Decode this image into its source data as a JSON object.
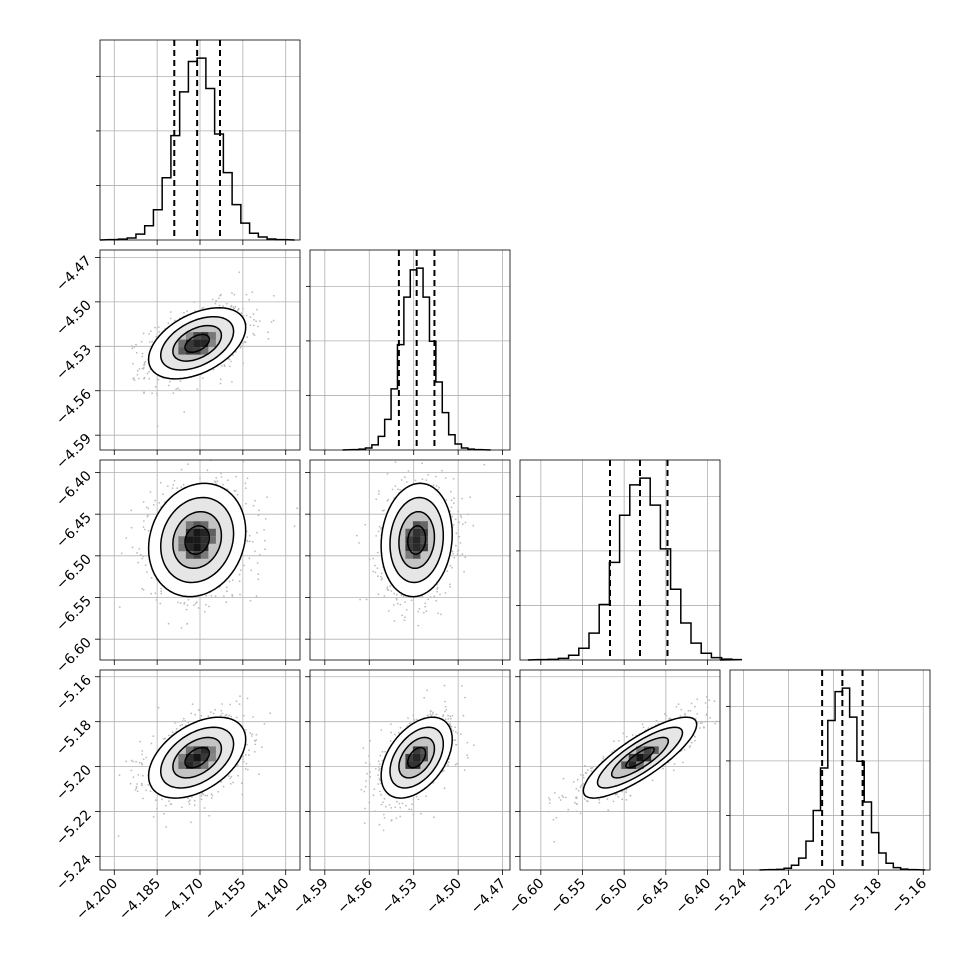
{
  "chart_data": {
    "type": "corner",
    "n_params": 4,
    "grid": true,
    "medians": [
      -4.171,
      -4.528,
      -6.481,
      -5.196
    ],
    "quantiles_16_84": [
      [
        -4.179,
        -4.163
      ],
      [
        -4.54,
        -4.516
      ],
      [
        -6.517,
        -6.448
      ],
      [
        -5.205,
        -5.187
      ]
    ],
    "sigmas": [
      0.0085,
      0.012,
      0.034,
      0.009
    ],
    "correlations": [
      {
        "pair": [
          0,
          1
        ],
        "rho": 0.45
      },
      {
        "pair": [
          0,
          2
        ],
        "rho": 0.15
      },
      {
        "pair": [
          1,
          2
        ],
        "rho": 0.1
      },
      {
        "pair": [
          0,
          3
        ],
        "rho": 0.45
      },
      {
        "pair": [
          1,
          3
        ],
        "rho": 0.45
      },
      {
        "pair": [
          2,
          3
        ],
        "rho": 0.82
      }
    ],
    "axes": [
      {
        "name": "",
        "range": [
          -4.205,
          -4.135
        ],
        "ticks": [
          "−4.200",
          "−4.185",
          "−4.170",
          "−4.155",
          "−4.140"
        ],
        "tick_values": [
          -4.2,
          -4.185,
          -4.17,
          -4.155,
          -4.14
        ]
      },
      {
        "name": "",
        "range": [
          -4.6,
          -4.465
        ],
        "ticks": [
          "−4.59",
          "−4.56",
          "−4.53",
          "−4.50",
          "−4.47"
        ],
        "tick_values": [
          -4.59,
          -4.56,
          -4.53,
          -4.5,
          -4.47
        ]
      },
      {
        "name": "",
        "range": [
          -6.625,
          -6.385
        ],
        "ticks": [
          "−6.60",
          "−6.55",
          "−6.50",
          "−6.45",
          "−6.40"
        ],
        "tick_values": [
          -6.6,
          -6.55,
          -6.5,
          -6.45,
          -6.4
        ]
      },
      {
        "name": "",
        "range": [
          -5.246,
          -5.157
        ],
        "ticks": [
          "−5.24",
          "−5.22",
          "−5.20",
          "−5.18",
          "−5.16"
        ],
        "tick_values": [
          -5.24,
          -5.22,
          -5.2,
          -5.18,
          -5.16
        ]
      }
    ],
    "histograms": [
      {
        "param": 0,
        "counts": [
          2,
          5,
          12,
          35,
          85,
          180,
          370,
          620,
          880,
          1060,
          1080,
          900,
          630,
          400,
          210,
          100,
          40,
          18,
          6,
          2
        ]
      },
      {
        "param": 1,
        "counts": [
          2,
          5,
          12,
          30,
          80,
          180,
          360,
          620,
          900,
          1060,
          1070,
          900,
          640,
          400,
          220,
          90,
          35,
          12,
          5,
          2
        ]
      },
      {
        "param": 2,
        "counts": [
          2,
          4,
          10,
          28,
          70,
          160,
          330,
          580,
          860,
          1040,
          1080,
          920,
          660,
          420,
          220,
          100,
          40,
          14,
          5,
          2
        ]
      },
      {
        "param": 3,
        "counts": [
          2,
          4,
          10,
          28,
          70,
          170,
          350,
          600,
          880,
          1050,
          1070,
          900,
          640,
          400,
          220,
          100,
          40,
          14,
          5,
          2
        ]
      }
    ],
    "contour_levels": [
      0.5,
      1.0,
      1.5,
      2.0
    ]
  }
}
